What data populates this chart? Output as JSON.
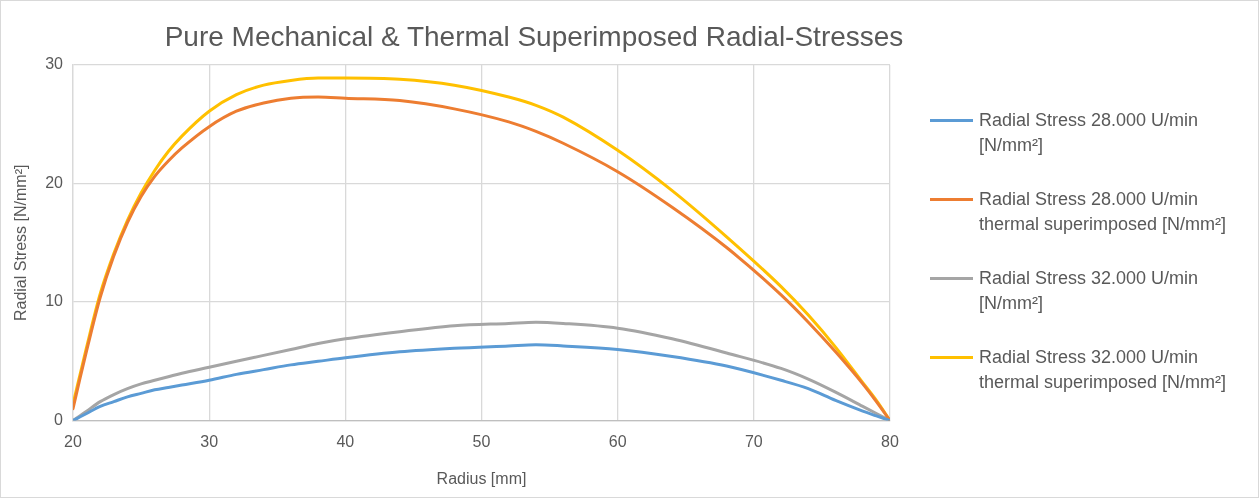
{
  "chart_data": {
    "type": "line",
    "title": "Pure Mechanical & Thermal Superimposed Radial-Stresses",
    "xlabel": "Radius [mm]",
    "ylabel": "Radial Stress [N/mm²]",
    "x": [
      20,
      20.5,
      21,
      22,
      23,
      24,
      25,
      26,
      27,
      28,
      30,
      32,
      34,
      36,
      38,
      40,
      44,
      48,
      52,
      54,
      56,
      60,
      64,
      68,
      72,
      74,
      76,
      78,
      79,
      80
    ],
    "series": [
      {
        "name": "Radial Stress 28.000 U/min [N/mm²]",
        "color": "#5b9bd5",
        "values": [
          0,
          0.3,
          0.6,
          1.2,
          1.6,
          2.0,
          2.3,
          2.6,
          2.8,
          3.0,
          3.4,
          3.9,
          4.3,
          4.7,
          5.0,
          5.3,
          5.8,
          6.1,
          6.3,
          6.4,
          6.3,
          6.0,
          5.4,
          4.6,
          3.4,
          2.7,
          1.7,
          0.8,
          0.4,
          0
        ]
      },
      {
        "name": "Radial Stress 28.000 U/min thermal superimposed [N/mm²]",
        "color": "#ed7d31",
        "values": [
          1.0,
          3.5,
          5.9,
          10.4,
          13.9,
          16.7,
          18.9,
          20.6,
          21.9,
          23.0,
          24.8,
          26.1,
          26.8,
          27.2,
          27.3,
          27.2,
          27.0,
          26.3,
          25.2,
          24.4,
          23.4,
          21.0,
          18.0,
          14.6,
          10.6,
          8.3,
          5.8,
          3.1,
          1.6,
          0
        ]
      },
      {
        "name": "Radial Stress 32.000 U/min [N/mm²]",
        "color": "#a5a5a5",
        "values": [
          0,
          0.4,
          0.8,
          1.6,
          2.2,
          2.7,
          3.1,
          3.4,
          3.7,
          4.0,
          4.5,
          5.0,
          5.5,
          6.0,
          6.5,
          6.9,
          7.5,
          8.0,
          8.2,
          8.3,
          8.2,
          7.8,
          6.9,
          5.7,
          4.4,
          3.5,
          2.4,
          1.2,
          0.6,
          0
        ]
      },
      {
        "name": "Radial Stress 32.000 U/min thermal superimposed [N/mm²]",
        "color": "#ffc000",
        "values": [
          1.4,
          3.8,
          6.2,
          10.7,
          14.1,
          16.9,
          19.2,
          21.1,
          22.7,
          24.0,
          26.1,
          27.5,
          28.3,
          28.7,
          28.9,
          28.9,
          28.8,
          28.3,
          27.3,
          26.6,
          25.6,
          22.8,
          19.4,
          15.5,
          11.3,
          8.9,
          6.2,
          3.2,
          1.7,
          0
        ]
      }
    ],
    "xlim": [
      20,
      80
    ],
    "xticks": [
      20,
      30,
      40,
      50,
      60,
      70,
      80
    ],
    "ylim": [
      0,
      30
    ],
    "yticks": [
      0,
      10,
      20,
      30
    ],
    "grid": true,
    "legend": "right",
    "marker": "none"
  }
}
